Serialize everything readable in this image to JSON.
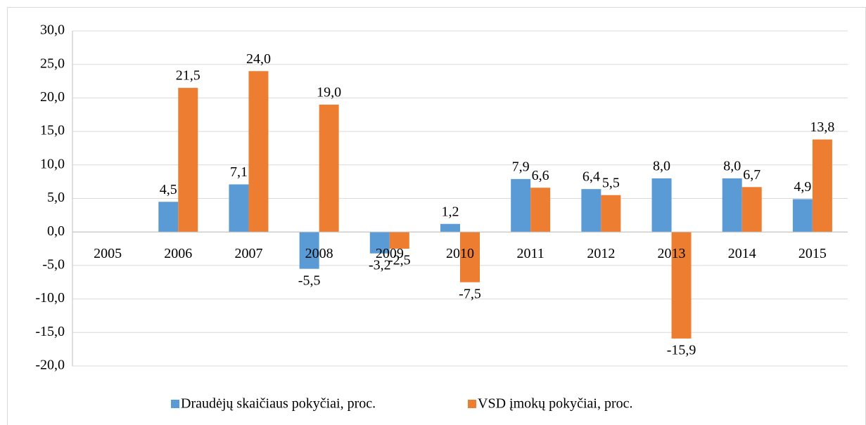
{
  "chart_data": {
    "type": "bar",
    "categories": [
      "2005",
      "2006",
      "2007",
      "2008",
      "2009",
      "2010",
      "2011",
      "2012",
      "2013",
      "2014",
      "2015"
    ],
    "series": [
      {
        "name": "Draudėjų skaičiaus pokyčiai, proc.",
        "color": "#5b9bd5",
        "values": [
          null,
          4.5,
          7.1,
          -5.5,
          -3.2,
          1.2,
          7.9,
          6.4,
          8.0,
          8.0,
          4.9
        ],
        "value_labels": [
          null,
          "4,5",
          "7,1",
          "-5,5",
          "-3,2",
          "1,2",
          "7,9",
          "6,4",
          "8,0",
          "8,0",
          "4,9"
        ]
      },
      {
        "name": "VSD įmokų pokyčiai, proc.",
        "color": "#ed7d31",
        "values": [
          null,
          21.5,
          24.0,
          19.0,
          -2.5,
          -7.5,
          6.6,
          5.5,
          -15.9,
          6.7,
          13.8
        ],
        "value_labels": [
          null,
          "21,5",
          "24,0",
          "19,0",
          "-2,5",
          "-7,5",
          "6,6",
          "5,5",
          "-15,9",
          "6,7",
          "13,8"
        ]
      }
    ],
    "ylim": [
      -20,
      30
    ],
    "yticks": [
      {
        "value": -20,
        "label": "-20,0"
      },
      {
        "value": -15,
        "label": "-15,0"
      },
      {
        "value": -10,
        "label": "-10,0"
      },
      {
        "value": -5,
        "label": "-5,0"
      },
      {
        "value": 0,
        "label": "0,0"
      },
      {
        "value": 5,
        "label": "5,0"
      },
      {
        "value": 10,
        "label": "10,0"
      },
      {
        "value": 15,
        "label": "15,0"
      },
      {
        "value": 20,
        "label": "20,0"
      },
      {
        "value": 25,
        "label": "25,0"
      },
      {
        "value": 30,
        "label": "30,0"
      }
    ],
    "grid": true,
    "legend": "bottom"
  }
}
